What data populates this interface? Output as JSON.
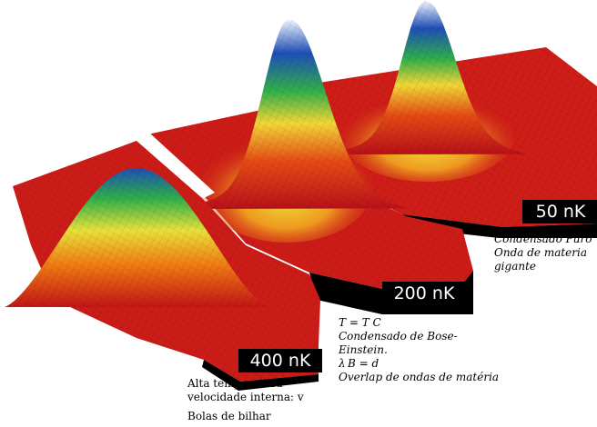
{
  "panels": [
    {
      "id": "p400",
      "temperature_label": "400 nK",
      "peak_level": 0.45,
      "notes": [
        "Alta temperatura",
        "velocidade interna: v",
        "Bolas de bilhar"
      ]
    },
    {
      "id": "p200",
      "temperature_label": "200 nK",
      "peak_level": 1.0,
      "notes": [
        "T = T C",
        "Condensado de Bose-",
        "Einstein.",
        "λ B = d",
        "Overlap de ondas de matéria"
      ]
    },
    {
      "id": "p50",
      "temperature_label": "50 nK",
      "peak_level": 0.97,
      "notes": [
        "Condensado Puro",
        "Onda de materia",
        "gigante"
      ]
    }
  ],
  "colors": {
    "red": "#c8141a",
    "orange": "#f07a12",
    "yellow": "#f2e83a",
    "green": "#2fb04a",
    "blue": "#1e4fb6",
    "white": "#ffffff",
    "shadow": "#000000"
  }
}
